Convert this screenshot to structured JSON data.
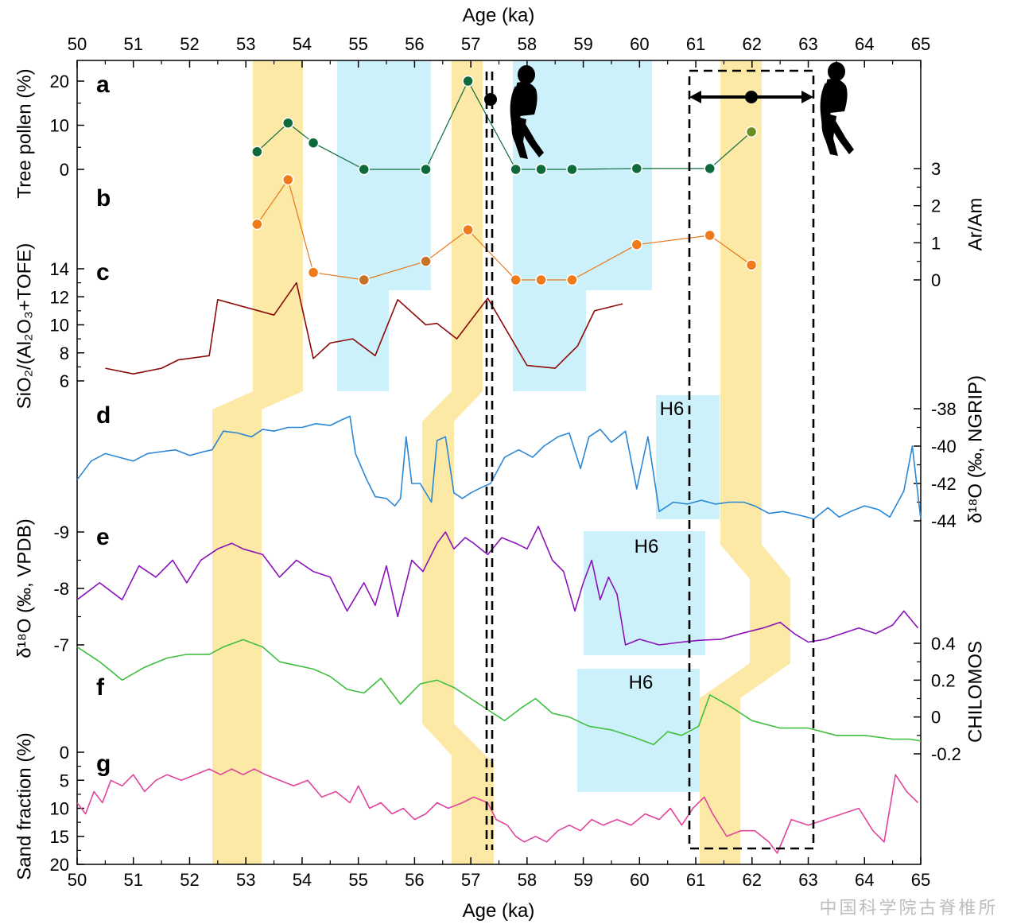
{
  "figure": {
    "x_axis_title": "Age (ka)",
    "x_ticks": [
      50,
      51,
      52,
      53,
      54,
      55,
      56,
      57,
      58,
      59,
      60,
      61,
      62,
      63,
      64,
      65
    ],
    "xlim": [
      50,
      65
    ],
    "watermark": "中国科学院古脊椎所",
    "h6_label": "H6",
    "colors": {
      "warm_band": "#fde9a6",
      "cold_band": "#cdf1fa",
      "tree_pollen": "#0f6a3b",
      "ar_am": "#e8771a",
      "sio2": "#8b0a0a",
      "ngrip": "#2a87d6",
      "vpdb": "#8a13b8",
      "chilomos": "#3fbf3f",
      "sand": "#e0459a"
    },
    "icons": [
      "hominin-silhouette-icon",
      "hominin-silhouette-icon"
    ]
  },
  "chart_data": [
    {
      "id": "a",
      "type": "scatter",
      "letter": "a",
      "ylabel": "Tree pollen (%)",
      "yticks": [
        0,
        10,
        20
      ],
      "x": [
        53.2,
        53.75,
        54.2,
        55.1,
        56.2,
        56.95,
        57.8,
        58.25,
        58.8,
        59.95,
        61.25,
        61.99
      ],
      "y": [
        4,
        10.5,
        6,
        0,
        0,
        20,
        0,
        0,
        0,
        0.2,
        0.2,
        8.5
      ]
    },
    {
      "id": "b",
      "type": "scatter",
      "letter": "b",
      "ylabel": "Ar/Am",
      "yticks": [
        0,
        1,
        2,
        3
      ],
      "x": [
        53.2,
        53.75,
        54.2,
        55.1,
        56.2,
        56.95,
        57.8,
        58.25,
        58.8,
        59.95,
        61.25,
        61.99
      ],
      "y": [
        1.5,
        2.7,
        0.2,
        0,
        0.5,
        1.35,
        0,
        0,
        0,
        0.95,
        1.2,
        0.4
      ]
    },
    {
      "id": "c",
      "type": "line",
      "letter": "c",
      "ylabel": "SiO₂/(Al₂O₃+TOFE)",
      "yticks": [
        6,
        8,
        10,
        12,
        14
      ],
      "x": [
        50.5,
        51.0,
        51.5,
        51.8,
        52.35,
        52.5,
        53.5,
        53.9,
        54.2,
        54.5,
        54.9,
        55.3,
        55.7,
        56.2,
        56.4,
        56.75,
        57.3,
        58.0,
        58.5,
        58.9,
        59.2,
        59.7
      ],
      "y": [
        6.9,
        6.5,
        6.9,
        7.5,
        7.8,
        11.8,
        10.7,
        13.0,
        7.6,
        8.7,
        9.0,
        7.8,
        11.8,
        10.0,
        10.1,
        9.0,
        11.9,
        7.1,
        6.9,
        8.5,
        11.0,
        11.5
      ]
    },
    {
      "id": "d",
      "type": "line",
      "letter": "d",
      "ylabel": "δ¹⁸O (‰, NGRIP)",
      "yticks": [
        -44,
        -42,
        -40,
        -38
      ],
      "x": [
        50.0,
        50.25,
        50.5,
        50.75,
        51.0,
        51.25,
        51.5,
        51.75,
        52.0,
        52.25,
        52.4,
        52.6,
        52.85,
        53.1,
        53.3,
        53.5,
        53.75,
        54.0,
        54.25,
        54.5,
        54.7,
        54.85,
        54.95,
        55.15,
        55.3,
        55.5,
        55.65,
        55.75,
        55.85,
        55.95,
        56.1,
        56.3,
        56.4,
        56.55,
        56.7,
        56.85,
        57.0,
        57.2,
        57.35,
        57.6,
        57.85,
        58.1,
        58.3,
        58.55,
        58.75,
        58.95,
        59.1,
        59.3,
        59.5,
        59.75,
        59.95,
        60.15,
        60.35,
        60.6,
        60.85,
        61.1,
        61.35,
        61.6,
        61.85,
        62.05,
        62.3,
        62.55,
        62.85,
        63.1,
        63.35,
        63.55,
        63.75,
        64.0,
        64.25,
        64.45,
        64.7,
        64.85,
        65.0
      ],
      "y": [
        -41.8,
        -40.8,
        -40.4,
        -40.6,
        -40.8,
        -40.4,
        -40.3,
        -40.2,
        -40.5,
        -40.3,
        -40.2,
        -39.2,
        -39.3,
        -39.5,
        -39.1,
        -39.2,
        -39.0,
        -39.0,
        -38.8,
        -38.9,
        -38.6,
        -38.4,
        -40.4,
        -41.8,
        -42.7,
        -42.8,
        -43.2,
        -42.8,
        -39.5,
        -42.0,
        -42.0,
        -43.0,
        -39.7,
        -39.5,
        -42.5,
        -42.8,
        -42.5,
        -42.2,
        -42.0,
        -40.6,
        -40.2,
        -40.6,
        -40.0,
        -39.5,
        -39.3,
        -41.2,
        -39.5,
        -39.1,
        -39.8,
        -39.2,
        -42.3,
        -39.5,
        -43.5,
        -43.0,
        -43.1,
        -42.9,
        -43.1,
        -43.0,
        -43.0,
        -43.2,
        -43.6,
        -43.5,
        -43.7,
        -43.9,
        -43.3,
        -43.8,
        -43.5,
        -43.2,
        -43.4,
        -43.8,
        -42.4,
        -40.0,
        -43.9
      ]
    },
    {
      "id": "e",
      "type": "line",
      "letter": "e",
      "ylabel": "δ¹⁸O (‰, VPDB)",
      "yticks": [
        -9,
        -8,
        -7
      ],
      "x": [
        50.0,
        50.4,
        50.8,
        51.1,
        51.4,
        51.7,
        51.95,
        52.2,
        52.35,
        52.5,
        52.75,
        52.95,
        53.3,
        53.6,
        53.9,
        54.2,
        54.5,
        54.8,
        55.1,
        55.3,
        55.5,
        55.7,
        55.95,
        56.15,
        56.4,
        56.55,
        56.7,
        56.9,
        57.05,
        57.3,
        57.55,
        57.8,
        58.0,
        58.2,
        58.45,
        58.65,
        58.85,
        59.0,
        59.15,
        59.3,
        59.45,
        59.6,
        59.75,
        60.0,
        60.35,
        60.75,
        61.05,
        61.45,
        61.8,
        62.2,
        62.5,
        62.75,
        63.0,
        63.3,
        63.6,
        63.9,
        64.2,
        64.5,
        64.7,
        64.95
      ],
      "y": [
        -7.8,
        -8.1,
        -7.8,
        -8.4,
        -8.2,
        -8.5,
        -8.1,
        -8.5,
        -8.6,
        -8.7,
        -8.8,
        -8.7,
        -8.6,
        -8.2,
        -8.5,
        -8.3,
        -8.2,
        -7.6,
        -8.1,
        -7.7,
        -8.4,
        -7.5,
        -8.5,
        -8.3,
        -8.8,
        -9.0,
        -8.7,
        -8.9,
        -8.8,
        -8.6,
        -8.9,
        -8.8,
        -8.7,
        -9.1,
        -8.5,
        -8.3,
        -7.6,
        -8.1,
        -8.5,
        -7.8,
        -8.2,
        -7.9,
        -7.0,
        -7.1,
        -7.0,
        -7.05,
        -7.08,
        -7.1,
        -7.2,
        -7.3,
        -7.4,
        -7.2,
        -7.05,
        -7.1,
        -7.2,
        -7.3,
        -7.2,
        -7.35,
        -7.6,
        -7.3
      ]
    },
    {
      "id": "f",
      "type": "line",
      "letter": "f",
      "ylabel": "CHILOMOS",
      "yticks": [
        -0.2,
        0,
        0.2,
        0.4
      ],
      "x": [
        50.0,
        50.4,
        50.8,
        51.2,
        51.6,
        51.95,
        52.35,
        52.6,
        52.95,
        53.3,
        53.6,
        53.9,
        54.2,
        54.5,
        54.8,
        55.1,
        55.4,
        55.75,
        56.1,
        56.4,
        56.7,
        57.0,
        57.3,
        57.6,
        57.9,
        58.15,
        58.45,
        58.75,
        59.1,
        59.5,
        59.9,
        60.25,
        60.5,
        60.75,
        61.05,
        61.25,
        61.6,
        62.0,
        62.5,
        63.0,
        63.5,
        64.0,
        64.5,
        64.8,
        65.0
      ],
      "y": [
        0.38,
        0.3,
        0.2,
        0.27,
        0.32,
        0.34,
        0.34,
        0.38,
        0.42,
        0.38,
        0.3,
        0.28,
        0.26,
        0.22,
        0.15,
        0.13,
        0.21,
        0.07,
        0.18,
        0.2,
        0.16,
        0.1,
        0.04,
        -0.02,
        0.05,
        0.1,
        0.02,
        0.0,
        -0.05,
        -0.07,
        -0.11,
        -0.15,
        -0.08,
        -0.1,
        -0.05,
        0.12,
        0.06,
        -0.02,
        -0.06,
        -0.06,
        -0.1,
        -0.1,
        -0.12,
        -0.12,
        -0.13
      ]
    },
    {
      "id": "g",
      "type": "line",
      "letter": "g",
      "ylabel": "Sand fraction (%)",
      "yticks": [
        0,
        5,
        10,
        15,
        20
      ],
      "x": [
        50.0,
        50.15,
        50.3,
        50.45,
        50.6,
        50.8,
        51.0,
        51.2,
        51.4,
        51.6,
        51.85,
        52.1,
        52.35,
        52.55,
        52.75,
        52.95,
        53.15,
        53.35,
        53.6,
        53.85,
        54.1,
        54.35,
        54.6,
        54.85,
        55.0,
        55.2,
        55.4,
        55.6,
        55.8,
        56.0,
        56.2,
        56.4,
        56.6,
        56.85,
        57.05,
        57.3,
        57.45,
        57.65,
        57.8,
        57.95,
        58.15,
        58.35,
        58.55,
        58.75,
        58.95,
        59.15,
        59.35,
        59.6,
        59.85,
        60.1,
        60.35,
        60.55,
        60.75,
        60.95,
        61.15,
        61.3,
        61.55,
        61.8,
        62.05,
        62.3,
        62.45,
        62.7,
        63.0,
        63.3,
        63.6,
        63.9,
        64.15,
        64.35,
        64.55,
        64.75,
        64.95
      ],
      "y": [
        9,
        11,
        7,
        9,
        5,
        6,
        4,
        7,
        5,
        4,
        5,
        4,
        3,
        4,
        3,
        4,
        3,
        4,
        5,
        6,
        5,
        8,
        7,
        9,
        6,
        10,
        9,
        11,
        10,
        12,
        11,
        9,
        10,
        9,
        8,
        9,
        12,
        13,
        15,
        16,
        15,
        16,
        14,
        13,
        14,
        12,
        13,
        12,
        13,
        11,
        12,
        10,
        13,
        10,
        8,
        11,
        15,
        14,
        14,
        16,
        18,
        12,
        13,
        12,
        11,
        10,
        14,
        16,
        4,
        7,
        9
      ]
    }
  ]
}
